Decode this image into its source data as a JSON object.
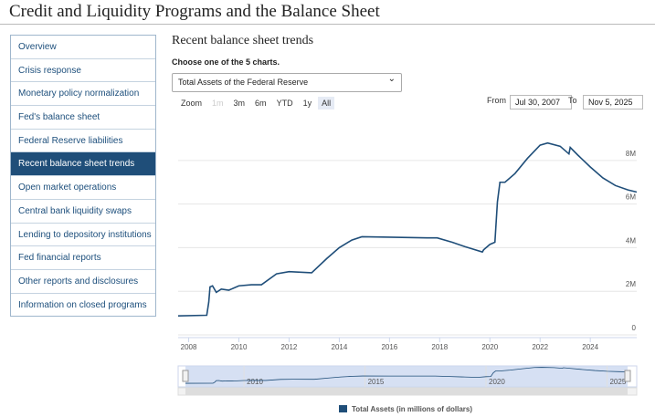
{
  "header": {
    "title": "Credit and Liquidity Programs and the Balance Sheet"
  },
  "nav": {
    "items": [
      "Overview",
      "Crisis response",
      "Monetary policy normalization",
      "Fed's balance sheet",
      "Federal Reserve liabilities",
      "Recent balance sheet trends",
      "Open market operations",
      "Central bank liquidity swaps",
      "Lending to depository institutions",
      "Fed financial reports",
      "Other reports and disclosures",
      "Information on closed programs"
    ]
  },
  "page": {
    "heading": "Recent balance sheet trends",
    "prompt": "Choose one of the 5 charts.",
    "select": "Total Assets of the Federal Reserve"
  },
  "zoom": {
    "label": "Zoom",
    "buttons": [
      "1m",
      "3m",
      "6m",
      "YTD",
      "1y",
      "All"
    ]
  },
  "range": {
    "from_label": "From",
    "from": "Jul 30, 2007",
    "to_label": "To",
    "to": "Nov 5, 2025"
  },
  "chart_data": {
    "type": "line",
    "x": [
      2007.58,
      2008.7,
      2008.72,
      2008.8,
      2008.85,
      2008.95,
      2009.1,
      2009.3,
      2009.6,
      2010.0,
      2010.5,
      2010.9,
      2011.5,
      2012.0,
      2012.9,
      2013.5,
      2014.0,
      2014.5,
      2014.9,
      2016.0,
      2017.5,
      2017.9,
      2018.5,
      2019.0,
      2019.7,
      2019.75,
      2020.0,
      2020.2,
      2020.3,
      2020.4,
      2020.6,
      2021.0,
      2021.5,
      2022.0,
      2022.3,
      2022.8,
      2023.15,
      2023.2,
      2023.5,
      2024.0,
      2024.5,
      2025.0,
      2025.5,
      2025.85
    ],
    "series": [
      {
        "name": "Total Assets (in millions of dollars)",
        "color": "#1f4e79",
        "values": [
          870000,
          900000,
          900000,
          1500000,
          2200000,
          2250000,
          1950000,
          2100000,
          2050000,
          2250000,
          2300000,
          2300000,
          2800000,
          2900000,
          2850000,
          3500000,
          4000000,
          4350000,
          4500000,
          4480000,
          4450000,
          4450000,
          4250000,
          4050000,
          3800000,
          3900000,
          4150000,
          4250000,
          6100000,
          7000000,
          7000000,
          7400000,
          8100000,
          8700000,
          8800000,
          8650000,
          8300000,
          8600000,
          8250000,
          7700000,
          7200000,
          6850000,
          6650000,
          6550000
        ]
      }
    ],
    "xlim": [
      2007.58,
      2025.85
    ],
    "ylim": [
      0,
      9500000
    ],
    "xticks": [
      2008,
      2010,
      2012,
      2014,
      2016,
      2018,
      2020,
      2022,
      2024
    ],
    "yticks": [
      0,
      {
        "value": 2000000,
        "label": "2M"
      },
      {
        "value": 4000000,
        "label": "4M"
      },
      {
        "value": 6000000,
        "label": "6M"
      },
      {
        "value": 8000000,
        "label": "8M"
      }
    ],
    "navigator_xticks": [
      2010,
      2015,
      2020,
      2025
    ],
    "grid": true
  }
}
